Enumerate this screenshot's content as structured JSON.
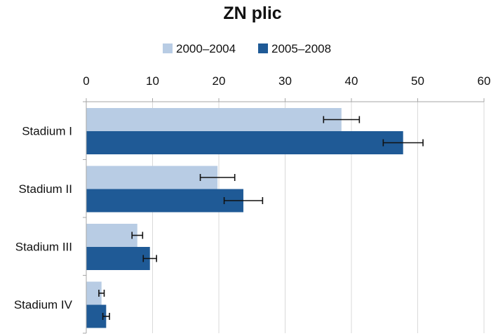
{
  "chart_data": {
    "type": "bar",
    "orientation": "horizontal",
    "title": "ZN plic",
    "xlabel": "",
    "ylabel": "",
    "categories": [
      "Stadium I",
      "Stadium II",
      "Stadium III",
      "Stadium IV"
    ],
    "xlim": [
      0,
      60
    ],
    "ticks": [
      0,
      10,
      20,
      30,
      40,
      50,
      60
    ],
    "tick_labels": [
      "0",
      "10",
      "20",
      "30",
      "40",
      "50",
      "60"
    ],
    "axis_position": "top",
    "grid": true,
    "legend_position": "top",
    "series": [
      {
        "name": "2000–2004",
        "color": "#b8cce4",
        "values": [
          38.5,
          19.8,
          7.7,
          2.3
        ],
        "errors": [
          2.7,
          2.6,
          0.8,
          0.4
        ]
      },
      {
        "name": "2005–2008",
        "color": "#1f5a96",
        "values": [
          47.8,
          23.7,
          9.6,
          3.0
        ],
        "errors": [
          3.0,
          2.9,
          1.0,
          0.5
        ]
      }
    ]
  }
}
